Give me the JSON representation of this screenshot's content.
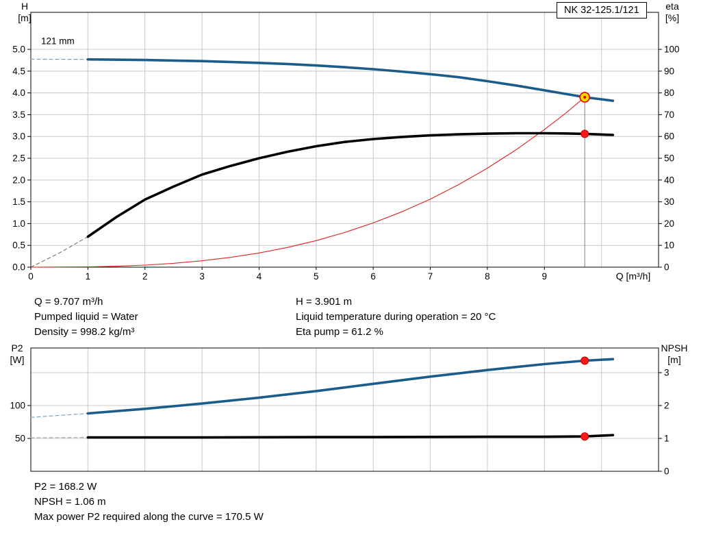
{
  "title_box": "NK 32-125.1/121",
  "top_info": {
    "left": [
      "Q = 9.707 m³/h",
      "Pumped liquid = Water",
      "Density = 998.2 kg/m³"
    ],
    "right": [
      "H = 3.901 m",
      "Liquid temperature during operation = 20 °C",
      "Eta pump = 61.2 %"
    ]
  },
  "bottom_info": [
    "P2 = 168.2 W",
    "NPSH = 1.06 m",
    "Max power P2 required along the curve = 170.5 W"
  ],
  "colors": {
    "curve_blue": "#1c5c8a",
    "curve_black": "#000000",
    "system_red": "#e02020",
    "marker_red_fill": "#ff1a1a",
    "marker_red_stroke": "#c00000",
    "duty_fill": "#ffd500",
    "duty_stroke": "#e00000",
    "grid": "#c8c8c8",
    "axis": "#000000",
    "duty_line": "#808080"
  },
  "chart_data": [
    {
      "type": "line",
      "name": "head-eta-chart",
      "x_axis": {
        "label": "Q [m³/h]",
        "min": 0,
        "max": 11,
        "gridlines": [
          1,
          2,
          3,
          4,
          5,
          6,
          7,
          8,
          9,
          10
        ],
        "ticks": [
          {
            "v": 0,
            "label": "0"
          },
          {
            "v": 1,
            "label": "1"
          },
          {
            "v": 2,
            "label": "2"
          },
          {
            "v": 3,
            "label": "3"
          },
          {
            "v": 4,
            "label": "4"
          },
          {
            "v": 5,
            "label": "5"
          },
          {
            "v": 6,
            "label": "6"
          },
          {
            "v": 7,
            "label": "7"
          },
          {
            "v": 8,
            "label": "8"
          },
          {
            "v": 9,
            "label": "9"
          }
        ]
      },
      "y_left": {
        "label_lines": [
          "H",
          "[m]"
        ],
        "min": 0,
        "max": 5.85,
        "ticks": [
          {
            "v": 0,
            "label": "0.0"
          },
          {
            "v": 0.5,
            "label": "0.5"
          },
          {
            "v": 1,
            "label": "1.0"
          },
          {
            "v": 1.5,
            "label": "1.5"
          },
          {
            "v": 2,
            "label": "2.0"
          },
          {
            "v": 2.5,
            "label": "2.5"
          },
          {
            "v": 3,
            "label": "3.0"
          },
          {
            "v": 3.5,
            "label": "3.5"
          },
          {
            "v": 4,
            "label": "4.0"
          },
          {
            "v": 4.5,
            "label": "4.5"
          },
          {
            "v": 5,
            "label": "5.0"
          }
        ]
      },
      "y_right": {
        "label_lines": [
          "eta",
          "[%]"
        ],
        "min": 0,
        "max": 117,
        "ticks": [
          {
            "v": 0,
            "label": "0"
          },
          {
            "v": 10,
            "label": "10"
          },
          {
            "v": 20,
            "label": "20"
          },
          {
            "v": 30,
            "label": "30"
          },
          {
            "v": 40,
            "label": "40"
          },
          {
            "v": 50,
            "label": "50"
          },
          {
            "v": 60,
            "label": "60"
          },
          {
            "v": 70,
            "label": "70"
          },
          {
            "v": 80,
            "label": "80"
          },
          {
            "v": 90,
            "label": "90"
          },
          {
            "v": 100,
            "label": "100"
          }
        ]
      },
      "h_grid": {
        "axis": "left",
        "values": [
          0.5,
          1,
          1.5,
          2,
          2.5,
          3,
          3.5,
          4,
          4.5,
          5
        ]
      },
      "duty_line": {
        "x": 9.707,
        "y": 3.901
      },
      "annotations": [
        {
          "x": 0.18,
          "y": 5.12,
          "text": "121 mm"
        }
      ],
      "series": [
        {
          "name": "head-leadin",
          "axis": "left",
          "color": "#7a9ebf",
          "width": 1.2,
          "dash": "5 4",
          "points": [
            [
              0,
              4.775
            ],
            [
              1,
              4.77
            ]
          ]
        },
        {
          "name": "eta-leadin",
          "axis": "right",
          "color": "#666666",
          "width": 1,
          "dash": "5 4",
          "points": [
            [
              0,
              0
            ],
            [
              0.5,
              6.5
            ],
            [
              1,
              14
            ]
          ]
        },
        {
          "name": "system-curve",
          "axis": "left",
          "color": "#e02020",
          "width": 1.1,
          "points": [
            [
              0,
              0
            ],
            [
              1,
              0.007
            ],
            [
              1.5,
              0.021
            ],
            [
              2,
              0.047
            ],
            [
              2.5,
              0.088
            ],
            [
              3,
              0.146
            ],
            [
              3.5,
              0.225
            ],
            [
              4,
              0.326
            ],
            [
              4.5,
              0.453
            ],
            [
              5,
              0.609
            ],
            [
              5.5,
              0.796
            ],
            [
              6,
              1.016
            ],
            [
              6.5,
              1.271
            ],
            [
              7,
              1.561
            ],
            [
              7.5,
              1.897
            ],
            [
              8,
              2.272
            ],
            [
              8.5,
              2.691
            ],
            [
              9,
              3.159
            ],
            [
              9.35,
              3.51
            ],
            [
              9.707,
              3.901
            ]
          ]
        },
        {
          "name": "eta",
          "axis": "right",
          "color": "#000000",
          "width": 3.6,
          "points": [
            [
              1,
              14
            ],
            [
              1.5,
              23
            ],
            [
              2,
              31
            ],
            [
              2.5,
              37
            ],
            [
              3,
              42.5
            ],
            [
              3.5,
              46.5
            ],
            [
              4,
              50
            ],
            [
              4.5,
              53
            ],
            [
              5,
              55.5
            ],
            [
              5.5,
              57.5
            ],
            [
              6,
              58.8
            ],
            [
              6.5,
              59.8
            ],
            [
              7,
              60.5
            ],
            [
              7.5,
              61
            ],
            [
              8,
              61.3
            ],
            [
              8.5,
              61.5
            ],
            [
              9,
              61.5
            ],
            [
              9.35,
              61.4
            ],
            [
              9.707,
              61.2
            ],
            [
              10.2,
              60.7
            ]
          ]
        },
        {
          "name": "head",
          "axis": "left",
          "color": "#1c5c8a",
          "width": 3.6,
          "points": [
            [
              1,
              4.77
            ],
            [
              2,
              4.755
            ],
            [
              3,
              4.73
            ],
            [
              4,
              4.69
            ],
            [
              4.5,
              4.665
            ],
            [
              5,
              4.63
            ],
            [
              5.5,
              4.59
            ],
            [
              6,
              4.545
            ],
            [
              6.5,
              4.49
            ],
            [
              7,
              4.43
            ],
            [
              7.5,
              4.36
            ],
            [
              8,
              4.27
            ],
            [
              8.5,
              4.17
            ],
            [
              9,
              4.06
            ],
            [
              9.4,
              3.97
            ],
            [
              9.707,
              3.901
            ],
            [
              10.2,
              3.82
            ]
          ]
        }
      ],
      "markers": [
        {
          "name": "eta-marker",
          "x": 9.707,
          "y": 61.2,
          "axis": "right",
          "type": "dot"
        },
        {
          "name": "duty-point-marker",
          "x": 9.707,
          "y": 3.901,
          "axis": "left",
          "type": "duty"
        }
      ]
    },
    {
      "type": "line",
      "name": "p2-npsh-chart",
      "x_axis": {
        "label": "",
        "min": 0,
        "max": 11,
        "gridlines": [
          1,
          2,
          3,
          4,
          5,
          6,
          7,
          8,
          9,
          10
        ],
        "ticks": []
      },
      "y_left": {
        "label_lines": [
          "P2",
          "[W]"
        ],
        "min": 0,
        "max": 187.5,
        "ticks": [
          {
            "v": 50,
            "label": "50"
          },
          {
            "v": 100,
            "label": "100"
          }
        ]
      },
      "y_right": {
        "label_lines": [
          "NPSH",
          "[m]"
        ],
        "min": 0,
        "max": 3.75,
        "ticks": [
          {
            "v": 0,
            "label": "0"
          },
          {
            "v": 1,
            "label": "1"
          },
          {
            "v": 2,
            "label": "2"
          },
          {
            "v": 3,
            "label": "3"
          }
        ]
      },
      "h_grid": {
        "axis": "right",
        "values": [
          1,
          2,
          3
        ]
      },
      "series": [
        {
          "name": "p2-leadin",
          "axis": "left",
          "color": "#7a9ebf",
          "width": 1.2,
          "dash": "5 4",
          "points": [
            [
              0,
              82
            ],
            [
              1,
              88
            ]
          ]
        },
        {
          "name": "npsh-leadin",
          "axis": "right",
          "color": "#aaaaaa",
          "width": 1.2,
          "dash": "5 4",
          "points": [
            [
              0,
              1.02
            ],
            [
              1,
              1.03
            ]
          ]
        },
        {
          "name": "p2",
          "axis": "left",
          "color": "#1c5c8a",
          "width": 3.6,
          "points": [
            [
              1,
              88
            ],
            [
              2,
              95
            ],
            [
              3,
              103
            ],
            [
              4,
              112
            ],
            [
              5,
              122
            ],
            [
              6,
              133
            ],
            [
              7,
              144
            ],
            [
              8,
              154
            ],
            [
              9,
              163
            ],
            [
              9.707,
              168.2
            ],
            [
              10.2,
              170.5
            ]
          ]
        },
        {
          "name": "npsh",
          "axis": "right",
          "color": "#000000",
          "width": 3.6,
          "points": [
            [
              1,
              1.03
            ],
            [
              2,
              1.03
            ],
            [
              3,
              1.03
            ],
            [
              4,
              1.035
            ],
            [
              5,
              1.04
            ],
            [
              6,
              1.04
            ],
            [
              7,
              1.045
            ],
            [
              8,
              1.05
            ],
            [
              9,
              1.05
            ],
            [
              9.707,
              1.06
            ],
            [
              10.2,
              1.1
            ]
          ]
        }
      ],
      "markers": [
        {
          "name": "p2-marker",
          "x": 9.707,
          "y": 168.2,
          "axis": "left",
          "type": "dot"
        },
        {
          "name": "npsh-marker",
          "x": 9.707,
          "y": 1.06,
          "axis": "right",
          "type": "dot"
        }
      ]
    }
  ]
}
